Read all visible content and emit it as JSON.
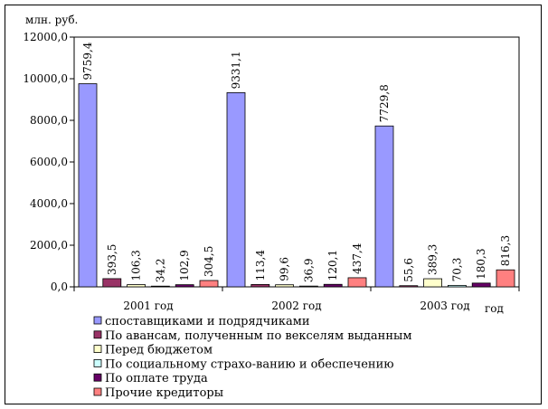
{
  "chart_data": {
    "type": "bar",
    "ylabel": "млн. руб.",
    "xlabel": "год",
    "ylim": [
      0,
      12000
    ],
    "yticks": [
      "0,0",
      "2000,0",
      "4000,0",
      "6000,0",
      "8000,0",
      "10000,0",
      "12000,0"
    ],
    "yticks_values": [
      0,
      2000,
      4000,
      6000,
      8000,
      10000,
      12000
    ],
    "categories": [
      "2001 год",
      "2002 год",
      "2003 год"
    ],
    "legend_position": "bottom",
    "grid": false,
    "series": [
      {
        "name": "споставщиками  и подрядчиками",
        "color": "#9999ff",
        "values": [
          9759.4,
          9331.1,
          7729.8
        ],
        "labels": [
          "9759,4",
          "9331,1",
          "7729,8"
        ]
      },
      {
        "name": "По авансам, полученным по векселям выданным",
        "color": "#993366",
        "values": [
          393.5,
          113.4,
          55.6
        ],
        "labels": [
          "393,5",
          "113,4",
          "55,6"
        ]
      },
      {
        "name": "Перед бюджетом",
        "color": "#ffffcc",
        "values": [
          106.3,
          99.6,
          389.3
        ],
        "labels": [
          "106,3",
          "99,6",
          "389,3"
        ]
      },
      {
        "name": "По социальному страхо-ванию и обеспечению",
        "color": "#ccffff",
        "values": [
          34.2,
          36.9,
          70.3
        ],
        "labels": [
          "34,2",
          "36,9",
          "70,3"
        ]
      },
      {
        "name": "По оплате труда",
        "color": "#660066",
        "values": [
          102.9,
          120.1,
          180.3
        ],
        "labels": [
          "102,9",
          "120,1",
          "180,3"
        ]
      },
      {
        "name": "Прочие кредиторы",
        "color": "#ff8080",
        "values": [
          304.5,
          437.4,
          816.3
        ],
        "labels": [
          "304,5",
          "437,4",
          "816,3"
        ]
      }
    ]
  }
}
